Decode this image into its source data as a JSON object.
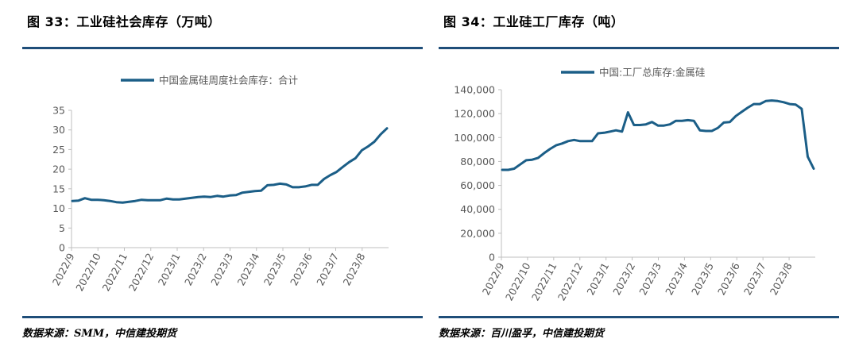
{
  "colors": {
    "accent": "#1f4e79",
    "series": "#1b5e87",
    "axis": "#bfbfbf",
    "text": "#595959"
  },
  "left": {
    "title": "图 33：工业硅社会库存（万吨）",
    "source": "数据来源：SMM，中信建投期货",
    "chart_data": {
      "type": "line",
      "legend": "中国金属硅周度社会库存：合计",
      "legend_position": "top",
      "grid": false,
      "ylim": [
        0,
        35
      ],
      "yticks": [
        0,
        5,
        10,
        15,
        20,
        25,
        30,
        35
      ],
      "xticklabels": [
        "2022/9",
        "2022/10",
        "2022/11",
        "2022/12",
        "2023/1",
        "2023/2",
        "2023/3",
        "2023/4",
        "2023/5",
        "2023/6",
        "2023/7",
        "2023/8"
      ],
      "values": [
        11.9,
        12.0,
        12.6,
        12.2,
        12.2,
        12.1,
        11.9,
        11.6,
        11.5,
        11.7,
        11.9,
        12.2,
        12.1,
        12.1,
        12.1,
        12.5,
        12.3,
        12.3,
        12.5,
        12.7,
        12.9,
        13.0,
        12.9,
        13.2,
        13.0,
        13.3,
        13.4,
        14.0,
        14.2,
        14.4,
        14.5,
        15.9,
        16.0,
        16.3,
        16.1,
        15.4,
        15.4,
        15.6,
        16.0,
        16.0,
        17.5,
        18.5,
        19.3,
        20.6,
        21.8,
        22.8,
        24.8,
        25.8,
        27.0,
        28.9,
        30.4
      ]
    }
  },
  "right": {
    "title": "图 34：工业硅工厂库存（吨）",
    "source": "数据来源：百川盈孚，中信建投期货",
    "chart_data": {
      "type": "line",
      "legend": "中国:工厂总库存:金属硅",
      "legend_position": "top",
      "grid": false,
      "ylim": [
        0,
        140000
      ],
      "yticks": [
        0,
        20000,
        40000,
        60000,
        80000,
        100000,
        120000,
        140000
      ],
      "yticklabels": [
        "0",
        "20,000",
        "40,000",
        "60,000",
        "80,000",
        "100,000",
        "120,000",
        "140,000"
      ],
      "xticklabels": [
        "2022/9",
        "2022/10",
        "2022/11",
        "2022/12",
        "2023/1",
        "2023/2",
        "2023/3",
        "2023/4",
        "2023/5",
        "2023/6",
        "2023/7",
        "2023/8"
      ],
      "values": [
        73000,
        73000,
        74000,
        77500,
        81000,
        81500,
        83000,
        87000,
        90500,
        93500,
        95000,
        97000,
        98000,
        97000,
        97000,
        97000,
        103500,
        104000,
        105000,
        106000,
        105000,
        121000,
        110500,
        110500,
        111000,
        113000,
        110000,
        110000,
        111000,
        114000,
        114000,
        114500,
        114000,
        106000,
        105500,
        105500,
        108000,
        112500,
        113000,
        118000,
        121500,
        125000,
        128000,
        128000,
        130500,
        131000,
        130500,
        129500,
        128000,
        127500,
        124000,
        84000,
        74000
      ]
    }
  }
}
